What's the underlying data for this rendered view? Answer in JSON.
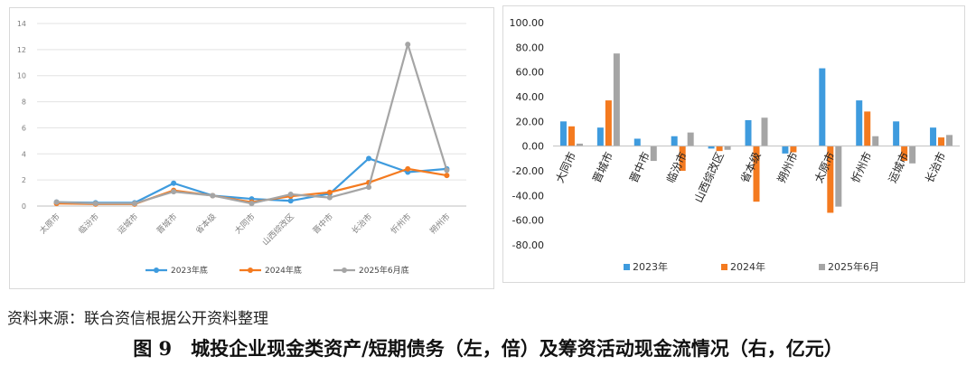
{
  "colors": {
    "blue": "#3e9bde",
    "orange": "#f47a1f",
    "gray": "#a5a5a5"
  },
  "source_text": "资料来源：联合资信根据公开资料整理",
  "caption": "图 9　城投企业现金类资产/短期债务（左，倍）及筹资活动现金流情况（右，亿元）",
  "chart_data": [
    {
      "type": "line",
      "title": "",
      "xlabel": "",
      "ylabel": "",
      "ylim": [
        0,
        14
      ],
      "yticks": [
        "0",
        "2",
        "4",
        "6",
        "8",
        "10",
        "12",
        "14"
      ],
      "grid": true,
      "legend": "bottom",
      "categories": [
        "太原市",
        "临汾市",
        "运城市",
        "晋城市",
        "省本级",
        "大同市",
        "山西综改区",
        "晋中市",
        "长治市",
        "忻州市",
        "朔州市"
      ],
      "series": [
        {
          "name": "2023年底",
          "color": "#3e9bde",
          "values": [
            0.3,
            0.25,
            0.25,
            1.75,
            0.8,
            0.55,
            0.4,
            0.95,
            3.65,
            2.6,
            2.85
          ]
        },
        {
          "name": "2024年底",
          "color": "#f47a1f",
          "values": [
            0.2,
            0.15,
            0.15,
            1.2,
            0.8,
            0.3,
            0.75,
            1.05,
            1.8,
            2.85,
            2.35
          ]
        },
        {
          "name": "2025年6月底",
          "color": "#a5a5a5",
          "values": [
            0.3,
            0.2,
            0.2,
            1.1,
            0.8,
            0.2,
            0.9,
            0.65,
            1.45,
            12.4,
            2.75
          ]
        }
      ]
    },
    {
      "type": "bar",
      "title": "",
      "xlabel": "",
      "ylabel": "",
      "ylim": [
        -80,
        100
      ],
      "yticks": [
        "100.00",
        "80.00",
        "60.00",
        "40.00",
        "20.00",
        "0.00",
        "-20.00",
        "-40.00",
        "-60.00",
        "-80.00"
      ],
      "grid": false,
      "legend": "bottom",
      "categories": [
        "大同市",
        "晋城市",
        "晋中市",
        "临汾市",
        "山西综改区",
        "省本级",
        "朔州市",
        "太原市",
        "忻州市",
        "运城市",
        "长治市"
      ],
      "series": [
        {
          "name": "2023年",
          "color": "#3e9bde",
          "values": [
            20,
            15,
            6,
            8,
            -2,
            21,
            -6,
            63,
            37,
            20,
            15
          ]
        },
        {
          "name": "2024年",
          "color": "#f47a1f",
          "values": [
            16,
            37,
            0,
            -20,
            -4,
            -45,
            -5,
            -54,
            28,
            -12,
            7
          ]
        },
        {
          "name": "2025年6月",
          "color": "#a5a5a5",
          "values": [
            2,
            75,
            -12,
            11,
            -3,
            23,
            0,
            -49,
            8,
            -14,
            9
          ]
        }
      ]
    }
  ]
}
